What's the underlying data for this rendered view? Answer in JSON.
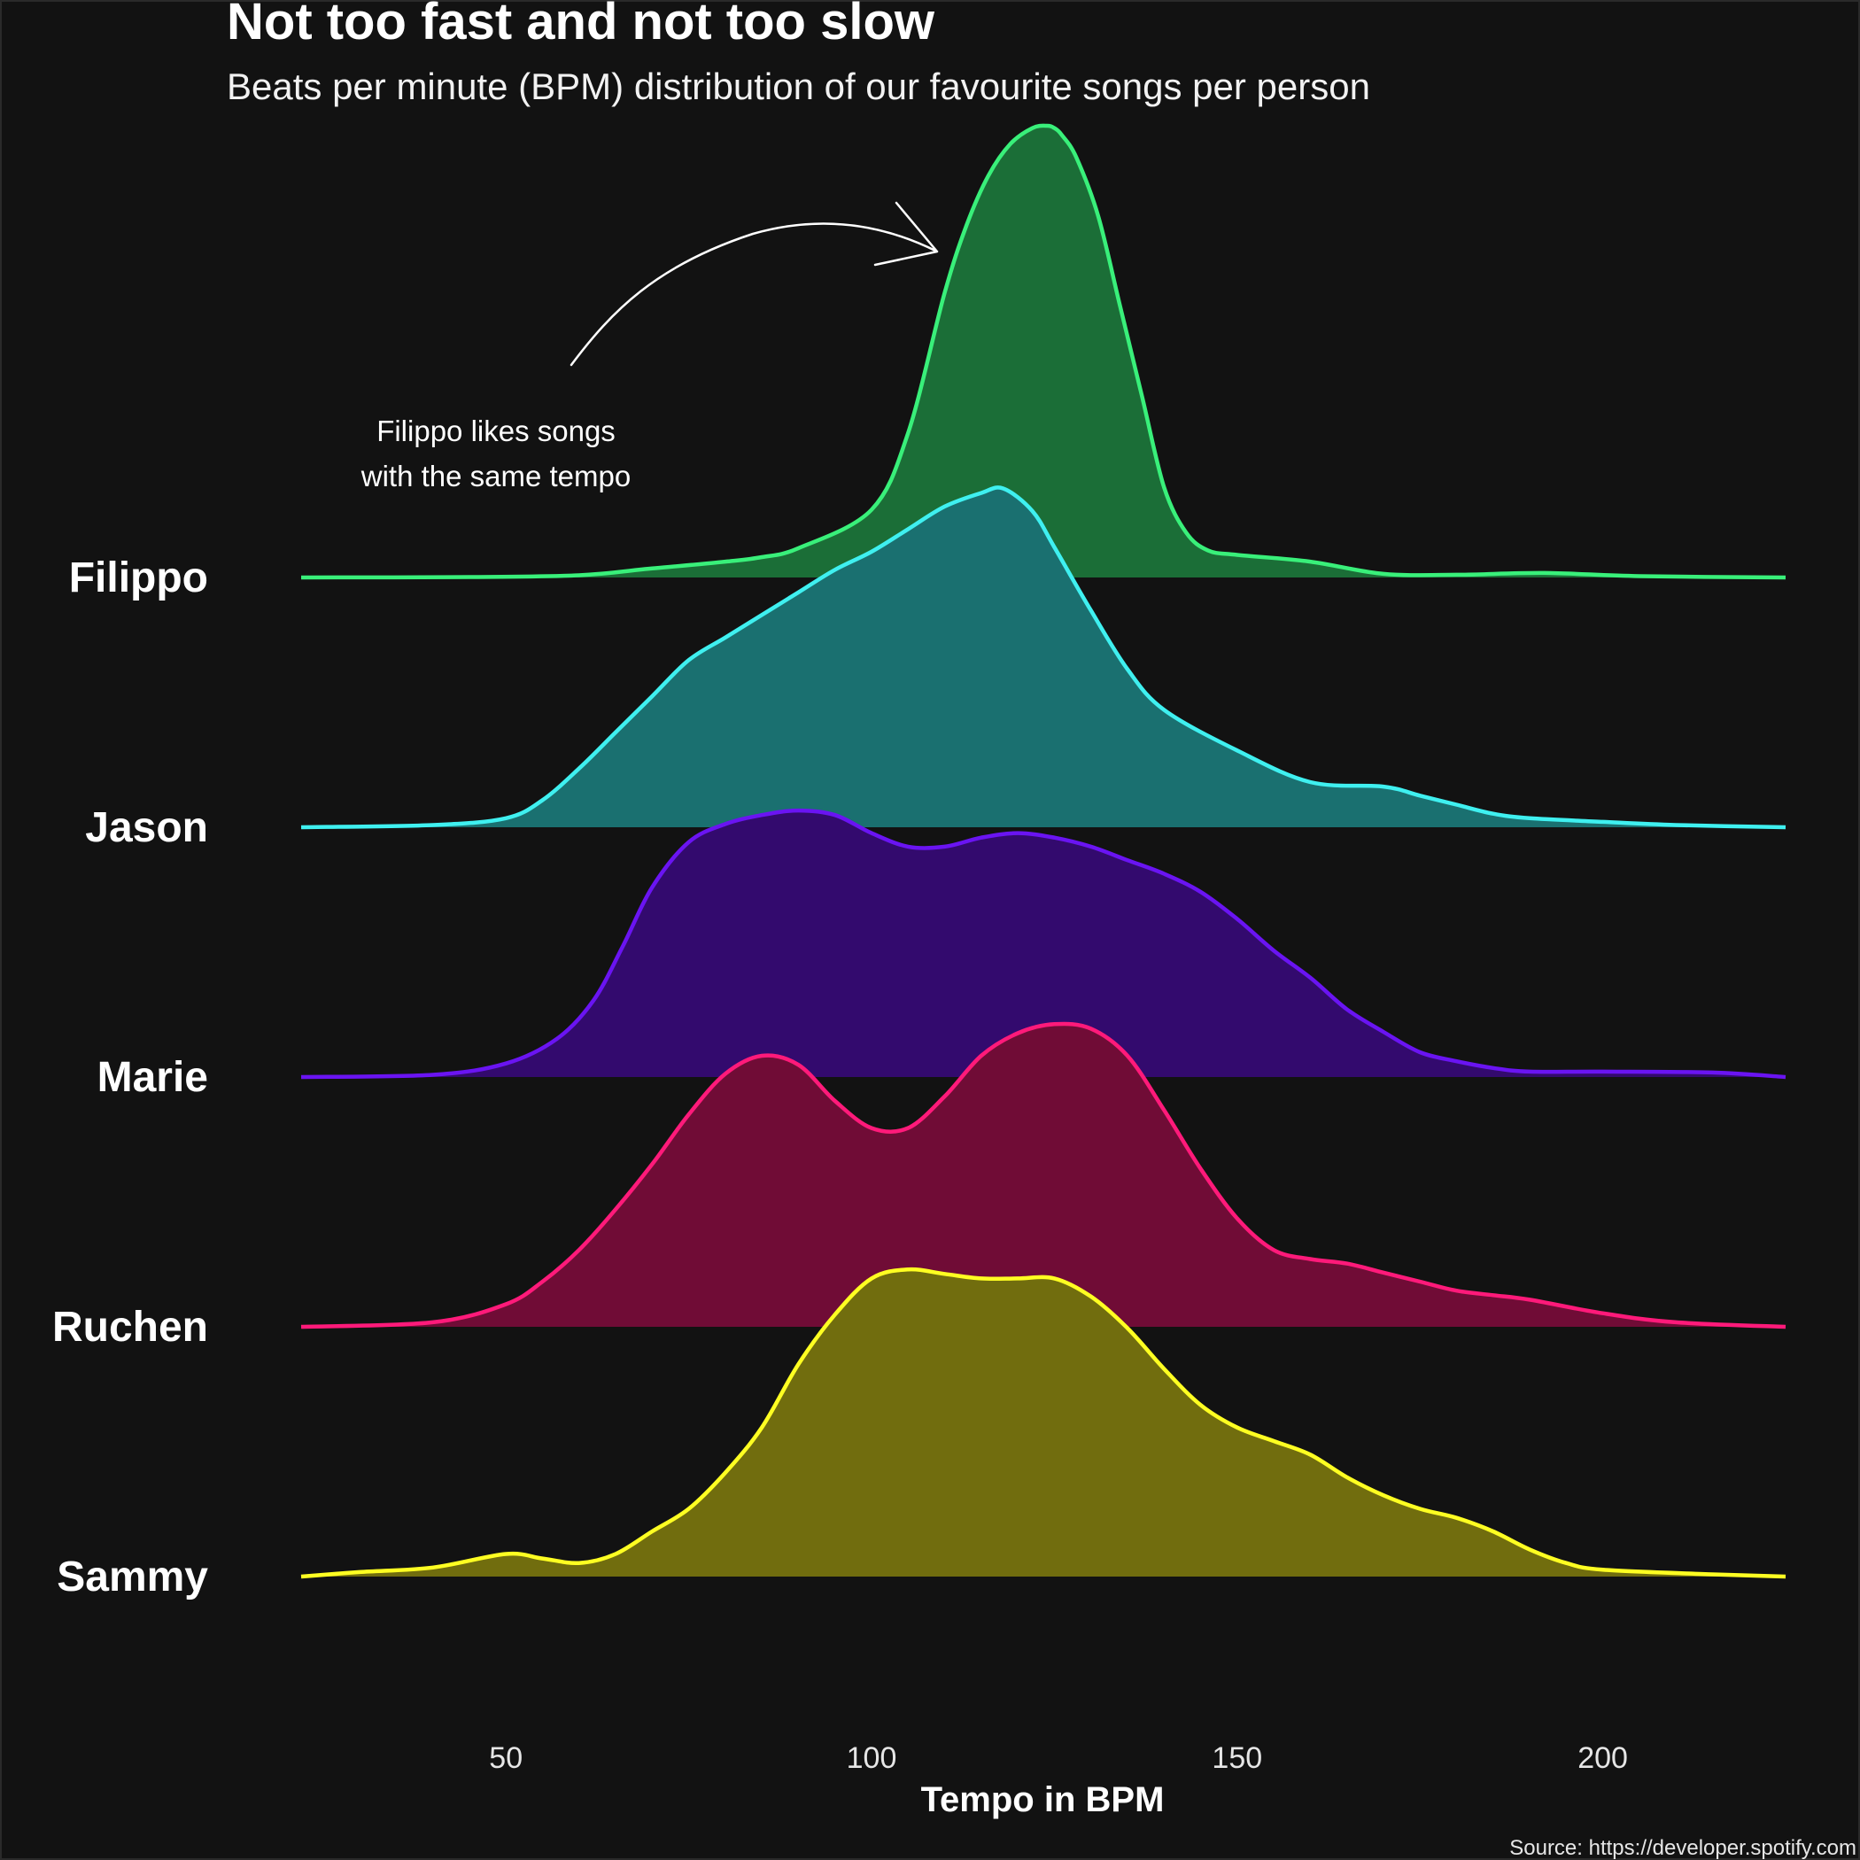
{
  "chart_data": {
    "type": "area",
    "title": "Not too fast and not too slow",
    "subtitle": "Beats per minute (BPM) distribution of our favourite songs per person",
    "xlabel": "Tempo in BPM",
    "ylabel": "",
    "xlim": [
      22,
      225
    ],
    "xticks": [
      50,
      100,
      150,
      200
    ],
    "grid": false,
    "legend": "none",
    "caption": "Source: https://developer.spotify.com",
    "annotation": {
      "lines": [
        "Filippo likes songs",
        "with the same tempo"
      ],
      "points_to": "Filippo"
    },
    "series": [
      {
        "name": "Filippo",
        "line_color": "#39f07a",
        "fill_color": "#1b6e37",
        "x": [
          22,
          45,
          60,
          70,
          80,
          85,
          90,
          100,
          105,
          110,
          113,
          116,
          119,
          122,
          124,
          125,
          126,
          128,
          131,
          134,
          137,
          140,
          143,
          146,
          150,
          160,
          170,
          180,
          192,
          205,
          225
        ],
        "y": [
          0,
          0.001,
          0.005,
          0.02,
          0.035,
          0.045,
          0.065,
          0.15,
          0.32,
          0.63,
          0.78,
          0.89,
          0.96,
          0.995,
          1.0,
          0.995,
          0.98,
          0.93,
          0.8,
          0.6,
          0.4,
          0.2,
          0.1,
          0.06,
          0.05,
          0.035,
          0.008,
          0.006,
          0.01,
          0.003,
          0
        ]
      },
      {
        "name": "Jason",
        "line_color": "#3ff0f0",
        "fill_color": "#1a7070",
        "x": [
          22,
          40,
          50,
          55,
          60,
          65,
          70,
          75,
          80,
          85,
          90,
          95,
          100,
          105,
          110,
          115,
          118,
          122,
          125,
          130,
          135,
          140,
          150,
          160,
          170,
          175,
          180,
          185,
          190,
          200,
          210,
          225
        ],
        "y": [
          0,
          0.005,
          0.02,
          0.06,
          0.13,
          0.21,
          0.29,
          0.37,
          0.42,
          0.47,
          0.52,
          0.57,
          0.61,
          0.66,
          0.71,
          0.74,
          0.75,
          0.7,
          0.62,
          0.48,
          0.35,
          0.26,
          0.17,
          0.1,
          0.09,
          0.07,
          0.05,
          0.03,
          0.02,
          0.012,
          0.005,
          0
        ]
      },
      {
        "name": "Marie",
        "line_color": "#6a14f2",
        "fill_color": "#330a6e",
        "x": [
          22,
          40,
          50,
          57,
          62,
          66,
          70,
          75,
          80,
          85,
          90,
          95,
          100,
          105,
          110,
          115,
          120,
          125,
          130,
          135,
          140,
          145,
          150,
          155,
          160,
          165,
          170,
          175,
          180,
          185,
          190,
          200,
          215,
          225
        ],
        "y": [
          0,
          0.005,
          0.03,
          0.085,
          0.17,
          0.29,
          0.42,
          0.52,
          0.56,
          0.58,
          0.59,
          0.58,
          0.54,
          0.51,
          0.51,
          0.53,
          0.54,
          0.53,
          0.51,
          0.48,
          0.45,
          0.41,
          0.35,
          0.28,
          0.22,
          0.15,
          0.1,
          0.055,
          0.035,
          0.02,
          0.012,
          0.012,
          0.01,
          0
        ]
      },
      {
        "name": "Ruchen",
        "line_color": "#ff1a7a",
        "fill_color": "#700c36",
        "x": [
          22,
          40,
          50,
          55,
          60,
          65,
          70,
          75,
          80,
          85,
          90,
          95,
          100,
          105,
          110,
          115,
          120,
          125,
          130,
          135,
          140,
          145,
          150,
          155,
          160,
          165,
          170,
          175,
          180,
          185,
          190,
          200,
          210,
          225
        ],
        "y": [
          0,
          0.01,
          0.05,
          0.1,
          0.17,
          0.26,
          0.36,
          0.47,
          0.56,
          0.6,
          0.58,
          0.5,
          0.44,
          0.44,
          0.51,
          0.6,
          0.65,
          0.67,
          0.66,
          0.6,
          0.48,
          0.35,
          0.24,
          0.17,
          0.15,
          0.14,
          0.12,
          0.1,
          0.08,
          0.07,
          0.06,
          0.03,
          0.01,
          0
        ]
      },
      {
        "name": "Sammy",
        "line_color": "#ffff22",
        "fill_color": "#716d0e",
        "x": [
          22,
          30,
          40,
          50,
          55,
          60,
          65,
          70,
          75,
          80,
          85,
          90,
          95,
          100,
          105,
          110,
          115,
          120,
          125,
          130,
          135,
          140,
          145,
          150,
          155,
          160,
          165,
          170,
          175,
          180,
          185,
          190,
          195,
          200,
          215,
          225
        ],
        "y": [
          0,
          0.01,
          0.02,
          0.05,
          0.04,
          0.03,
          0.05,
          0.1,
          0.15,
          0.23,
          0.33,
          0.47,
          0.58,
          0.66,
          0.68,
          0.67,
          0.66,
          0.66,
          0.66,
          0.62,
          0.55,
          0.46,
          0.38,
          0.33,
          0.3,
          0.27,
          0.22,
          0.18,
          0.15,
          0.13,
          0.1,
          0.06,
          0.03,
          0.015,
          0.005,
          0
        ]
      }
    ]
  }
}
